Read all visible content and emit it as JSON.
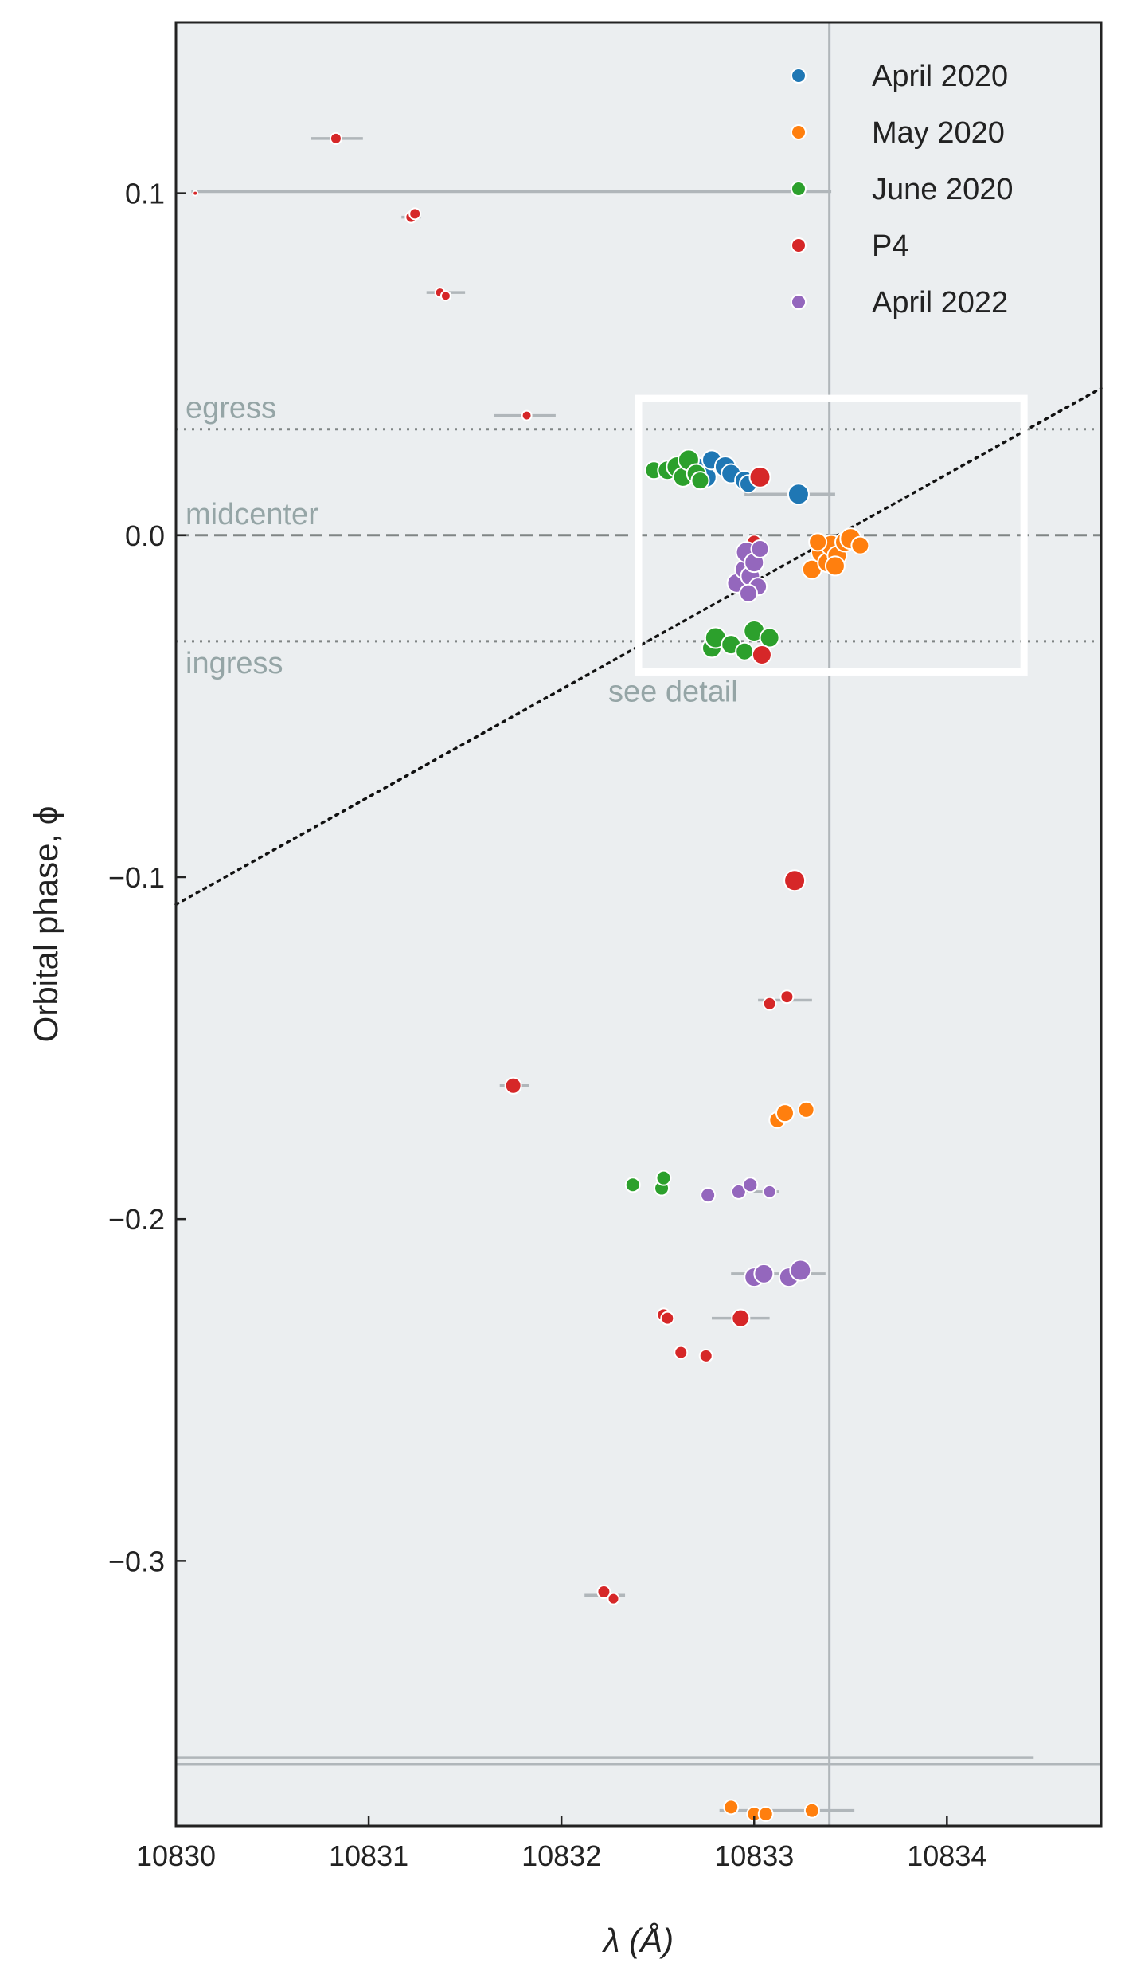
{
  "chart_data": {
    "type": "scatter",
    "xlabel": "λ (Å)",
    "ylabel": "Orbital phase, ϕ",
    "xlim": [
      10830,
      10834.8
    ],
    "ylim": [
      -0.3775,
      0.15
    ],
    "xticks": [
      "10830",
      "10831",
      "10832",
      "10833",
      "10834"
    ],
    "yticks": [
      "0.1",
      "0.0",
      "−0.1",
      "−0.2",
      "−0.3"
    ],
    "legend_position": "top-right",
    "colors": {
      "background": "#ebeef0",
      "April 2020": "#1f77b4",
      "May 2020": "#ff7f0e",
      "June 2020": "#2ca02c",
      "P4": "#d62728",
      "April 2022": "#9467bd",
      "errorbar": "#b0b6ba",
      "reference_lines": "#808585",
      "annotation_text": "#95a5a6"
    },
    "reference_lines": [
      {
        "label": "egress",
        "y": 0.031,
        "style": "dotted"
      },
      {
        "label": "midcenter",
        "y": 0.0,
        "style": "dashed"
      },
      {
        "label": "ingress",
        "y": -0.031,
        "style": "dotted"
      }
    ],
    "vertical_line": {
      "x": 10833.39
    },
    "diagonal_line": {
      "style": "dotted",
      "from": [
        10830,
        -0.108
      ],
      "to": [
        10834.8,
        0.043
      ]
    },
    "detail_box": {
      "label": "see detail",
      "x": [
        10832.4,
        10834.4
      ],
      "y": [
        -0.04,
        0.04
      ]
    },
    "series": [
      {
        "name": "April 2020",
        "points": [
          {
            "x": 10832.7,
            "y": 0.02,
            "s": 12
          },
          {
            "x": 10832.75,
            "y": 0.017,
            "s": 13
          },
          {
            "x": 10832.78,
            "y": 0.022,
            "s": 12
          },
          {
            "x": 10832.85,
            "y": 0.02,
            "s": 13
          },
          {
            "x": 10832.88,
            "y": 0.018,
            "s": 12
          },
          {
            "x": 10832.95,
            "y": 0.016,
            "s": 12
          },
          {
            "x": 10832.97,
            "y": 0.015,
            "s": 11
          },
          {
            "x": 10833.23,
            "y": 0.012,
            "s": 13
          }
        ]
      },
      {
        "name": "May 2020",
        "points": [
          {
            "x": 10833.3,
            "y": -0.01,
            "s": 12
          },
          {
            "x": 10833.35,
            "y": -0.005,
            "s": 13
          },
          {
            "x": 10833.38,
            "y": -0.008,
            "s": 12
          },
          {
            "x": 10833.4,
            "y": -0.003,
            "s": 13
          },
          {
            "x": 10833.43,
            "y": -0.006,
            "s": 12
          },
          {
            "x": 10833.47,
            "y": -0.002,
            "s": 12
          },
          {
            "x": 10833.5,
            "y": -0.001,
            "s": 13
          },
          {
            "x": 10833.33,
            "y": -0.002,
            "s": 11
          },
          {
            "x": 10833.42,
            "y": -0.009,
            "s": 12
          },
          {
            "x": 10833.55,
            "y": -0.003,
            "s": 11
          },
          {
            "x": 10833.12,
            "y": -0.171,
            "s": 10
          },
          {
            "x": 10833.16,
            "y": -0.169,
            "s": 11
          },
          {
            "x": 10833.27,
            "y": -0.168,
            "s": 10
          },
          {
            "x": 10832.88,
            "y": -0.372,
            "s": 9
          },
          {
            "x": 10833.0,
            "y": -0.374,
            "s": 9
          },
          {
            "x": 10833.06,
            "y": -0.374,
            "s": 9
          },
          {
            "x": 10833.3,
            "y": -0.373,
            "s": 9
          }
        ]
      },
      {
        "name": "June 2020",
        "points": [
          {
            "x": 10832.48,
            "y": 0.019,
            "s": 11
          },
          {
            "x": 10832.55,
            "y": 0.019,
            "s": 12
          },
          {
            "x": 10832.6,
            "y": 0.02,
            "s": 13
          },
          {
            "x": 10832.63,
            "y": 0.017,
            "s": 12
          },
          {
            "x": 10832.66,
            "y": 0.022,
            "s": 13
          },
          {
            "x": 10832.7,
            "y": 0.018,
            "s": 12
          },
          {
            "x": 10832.72,
            "y": 0.016,
            "s": 11
          },
          {
            "x": 10832.78,
            "y": -0.033,
            "s": 12
          },
          {
            "x": 10832.8,
            "y": -0.03,
            "s": 13
          },
          {
            "x": 10832.88,
            "y": -0.032,
            "s": 12
          },
          {
            "x": 10832.95,
            "y": -0.034,
            "s": 11
          },
          {
            "x": 10833.0,
            "y": -0.028,
            "s": 13
          },
          {
            "x": 10833.08,
            "y": -0.03,
            "s": 12
          },
          {
            "x": 10832.37,
            "y": -0.19,
            "s": 9
          },
          {
            "x": 10832.52,
            "y": -0.191,
            "s": 9
          },
          {
            "x": 10832.53,
            "y": -0.188,
            "s": 9
          }
        ]
      },
      {
        "name": "P4",
        "points": [
          {
            "x": 10830.1,
            "y": 0.1,
            "s": 3
          },
          {
            "x": 10830.83,
            "y": 0.116,
            "s": 7
          },
          {
            "x": 10831.22,
            "y": 0.093,
            "s": 7
          },
          {
            "x": 10831.24,
            "y": 0.094,
            "s": 7
          },
          {
            "x": 10831.37,
            "y": 0.071,
            "s": 6
          },
          {
            "x": 10831.4,
            "y": 0.07,
            "s": 6
          },
          {
            "x": 10831.82,
            "y": 0.035,
            "s": 6
          },
          {
            "x": 10833.03,
            "y": 0.017,
            "s": 13
          },
          {
            "x": 10833.0,
            "y": -0.002,
            "s": 9
          },
          {
            "x": 10833.04,
            "y": -0.035,
            "s": 12
          },
          {
            "x": 10833.21,
            "y": -0.101,
            "s": 13
          },
          {
            "x": 10833.08,
            "y": -0.137,
            "s": 8
          },
          {
            "x": 10833.17,
            "y": -0.135,
            "s": 8
          },
          {
            "x": 10831.75,
            "y": -0.161,
            "s": 10
          },
          {
            "x": 10832.53,
            "y": -0.228,
            "s": 8
          },
          {
            "x": 10832.55,
            "y": -0.229,
            "s": 8
          },
          {
            "x": 10832.93,
            "y": -0.229,
            "s": 11
          },
          {
            "x": 10832.62,
            "y": -0.239,
            "s": 8
          },
          {
            "x": 10832.75,
            "y": -0.24,
            "s": 8
          },
          {
            "x": 10832.22,
            "y": -0.309,
            "s": 8
          },
          {
            "x": 10832.27,
            "y": -0.311,
            "s": 7
          }
        ]
      },
      {
        "name": "April 2022",
        "points": [
          {
            "x": 10832.91,
            "y": -0.014,
            "s": 12
          },
          {
            "x": 10832.95,
            "y": -0.01,
            "s": 12
          },
          {
            "x": 10832.96,
            "y": -0.005,
            "s": 13
          },
          {
            "x": 10832.98,
            "y": -0.012,
            "s": 12
          },
          {
            "x": 10833.0,
            "y": -0.008,
            "s": 12
          },
          {
            "x": 10833.02,
            "y": -0.015,
            "s": 11
          },
          {
            "x": 10833.03,
            "y": -0.004,
            "s": 11
          },
          {
            "x": 10832.97,
            "y": -0.017,
            "s": 11
          },
          {
            "x": 10832.76,
            "y": -0.193,
            "s": 9
          },
          {
            "x": 10832.92,
            "y": -0.192,
            "s": 9
          },
          {
            "x": 10832.98,
            "y": -0.19,
            "s": 9
          },
          {
            "x": 10833.08,
            "y": -0.192,
            "s": 8
          },
          {
            "x": 10833.0,
            "y": -0.217,
            "s": 12
          },
          {
            "x": 10833.05,
            "y": -0.216,
            "s": 12
          },
          {
            "x": 10833.18,
            "y": -0.217,
            "s": 12
          },
          {
            "x": 10833.24,
            "y": -0.215,
            "s": 13
          }
        ]
      }
    ],
    "errorbars": [
      {
        "x": [
          10830.08,
          10833.4
        ],
        "y": 0.1005
      },
      {
        "x": [
          10830.7,
          10830.97
        ],
        "y": 0.116
      },
      {
        "x": [
          10831.17,
          10831.27
        ],
        "y": 0.093
      },
      {
        "x": [
          10831.3,
          10831.5
        ],
        "y": 0.071
      },
      {
        "x": [
          10831.65,
          10831.97
        ],
        "y": 0.035
      },
      {
        "x": [
          10832.95,
          10833.42
        ],
        "y": 0.012
      },
      {
        "x": [
          10833.02,
          10833.3
        ],
        "y": -0.136
      },
      {
        "x": [
          10831.68,
          10831.83
        ],
        "y": -0.161
      },
      {
        "x": [
          10832.78,
          10833.08
        ],
        "y": -0.229
      },
      {
        "x": [
          10832.12,
          10832.33
        ],
        "y": -0.31
      },
      {
        "x": [
          10832.93,
          10833.13
        ],
        "y": -0.192
      },
      {
        "x": [
          10832.88,
          10833.37
        ],
        "y": -0.216
      },
      {
        "x": [
          10832.82,
          10833.52
        ],
        "y": -0.373
      },
      {
        "x": [
          10830.0,
          10834.45
        ],
        "y": -0.3575
      },
      {
        "x": [
          10830.0,
          10834.8
        ],
        "y": -0.3595
      }
    ]
  }
}
